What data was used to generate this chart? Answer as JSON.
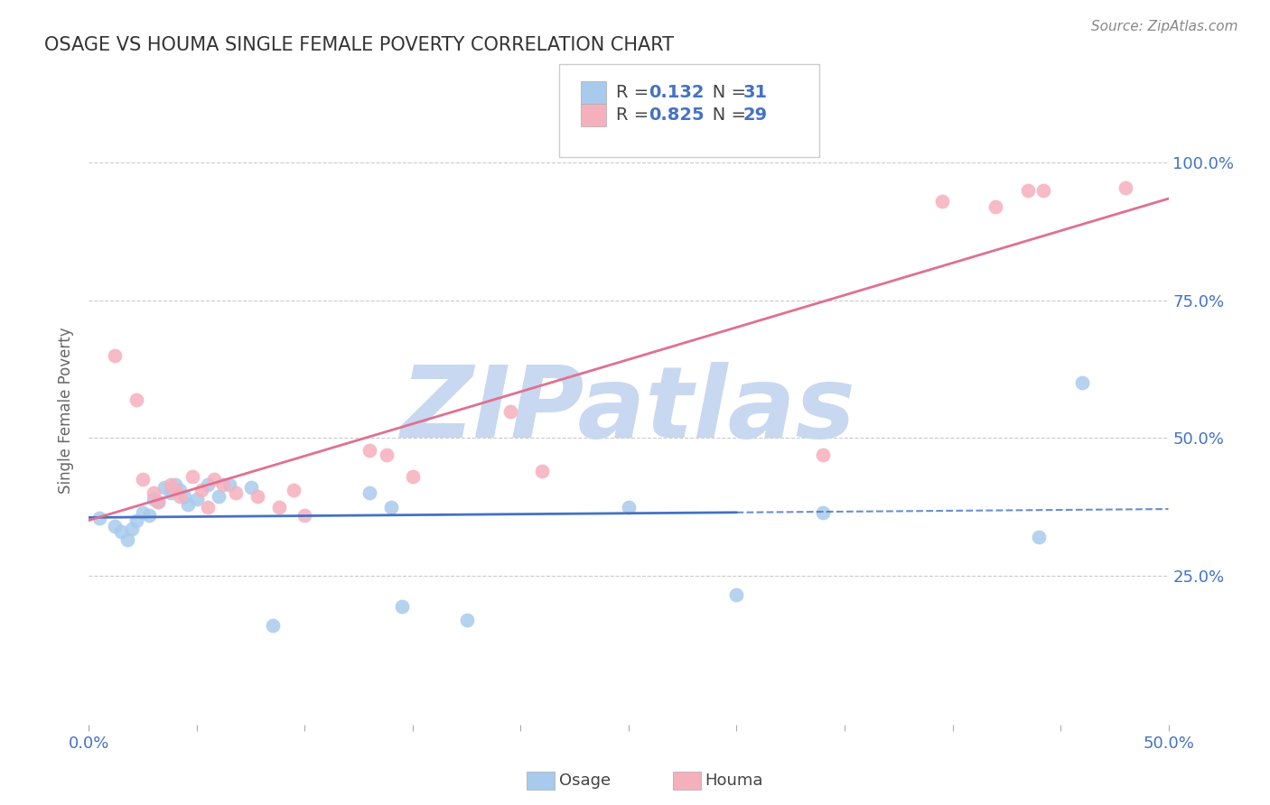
{
  "title": "OSAGE VS HOUMA SINGLE FEMALE POVERTY CORRELATION CHART",
  "source_text": "Source: ZipAtlas.com",
  "ylabel": "Single Female Poverty",
  "xlim": [
    0.0,
    0.5
  ],
  "ylim": [
    -0.02,
    1.12
  ],
  "xtick_labels_ends": [
    "0.0%",
    "50.0%"
  ],
  "xtick_vals_ends": [
    0.0,
    0.5
  ],
  "ytick_labels": [
    "25.0%",
    "50.0%",
    "75.0%",
    "100.0%"
  ],
  "ytick_vals": [
    0.25,
    0.5,
    0.75,
    1.0
  ],
  "grid_color": "#cccccc",
  "background_color": "#ffffff",
  "osage_color": "#A8CAEC",
  "houma_color": "#F5B0BE",
  "osage_R": 0.132,
  "osage_N": 31,
  "houma_R": 0.825,
  "houma_N": 29,
  "osage_line_color": "#4472C4",
  "houma_line_color": "#E07090",
  "legend_text_color": "#4472C4",
  "title_color": "#333333",
  "source_color": "#888888",
  "watermark": "ZIPatlas",
  "watermark_color": "#C8D8F0",
  "tick_label_color": "#4472C4",
  "osage_x": [
    0.005,
    0.012,
    0.015,
    0.018,
    0.02,
    0.022,
    0.025,
    0.028,
    0.03,
    0.032,
    0.035,
    0.038,
    0.04,
    0.042,
    0.044,
    0.046,
    0.05,
    0.055,
    0.06,
    0.065,
    0.075,
    0.085,
    0.13,
    0.14,
    0.145,
    0.175,
    0.25,
    0.3,
    0.34,
    0.44,
    0.46
  ],
  "osage_y": [
    0.355,
    0.34,
    0.33,
    0.315,
    0.335,
    0.35,
    0.365,
    0.36,
    0.39,
    0.385,
    0.41,
    0.4,
    0.415,
    0.405,
    0.395,
    0.38,
    0.39,
    0.415,
    0.395,
    0.415,
    0.41,
    0.16,
    0.4,
    0.375,
    0.195,
    0.17,
    0.375,
    0.215,
    0.365,
    0.32,
    0.6
  ],
  "houma_x": [
    0.012,
    0.022,
    0.025,
    0.03,
    0.032,
    0.038,
    0.04,
    0.042,
    0.048,
    0.052,
    0.055,
    0.058,
    0.062,
    0.068,
    0.078,
    0.088,
    0.095,
    0.1,
    0.13,
    0.138,
    0.15,
    0.195,
    0.21,
    0.34,
    0.395,
    0.42,
    0.435,
    0.442,
    0.48
  ],
  "houma_y": [
    0.65,
    0.57,
    0.425,
    0.4,
    0.385,
    0.415,
    0.405,
    0.395,
    0.43,
    0.405,
    0.375,
    0.425,
    0.415,
    0.4,
    0.395,
    0.375,
    0.405,
    0.36,
    0.478,
    0.47,
    0.43,
    0.548,
    0.44,
    0.47,
    0.93,
    0.92,
    0.95,
    0.95,
    0.955
  ]
}
